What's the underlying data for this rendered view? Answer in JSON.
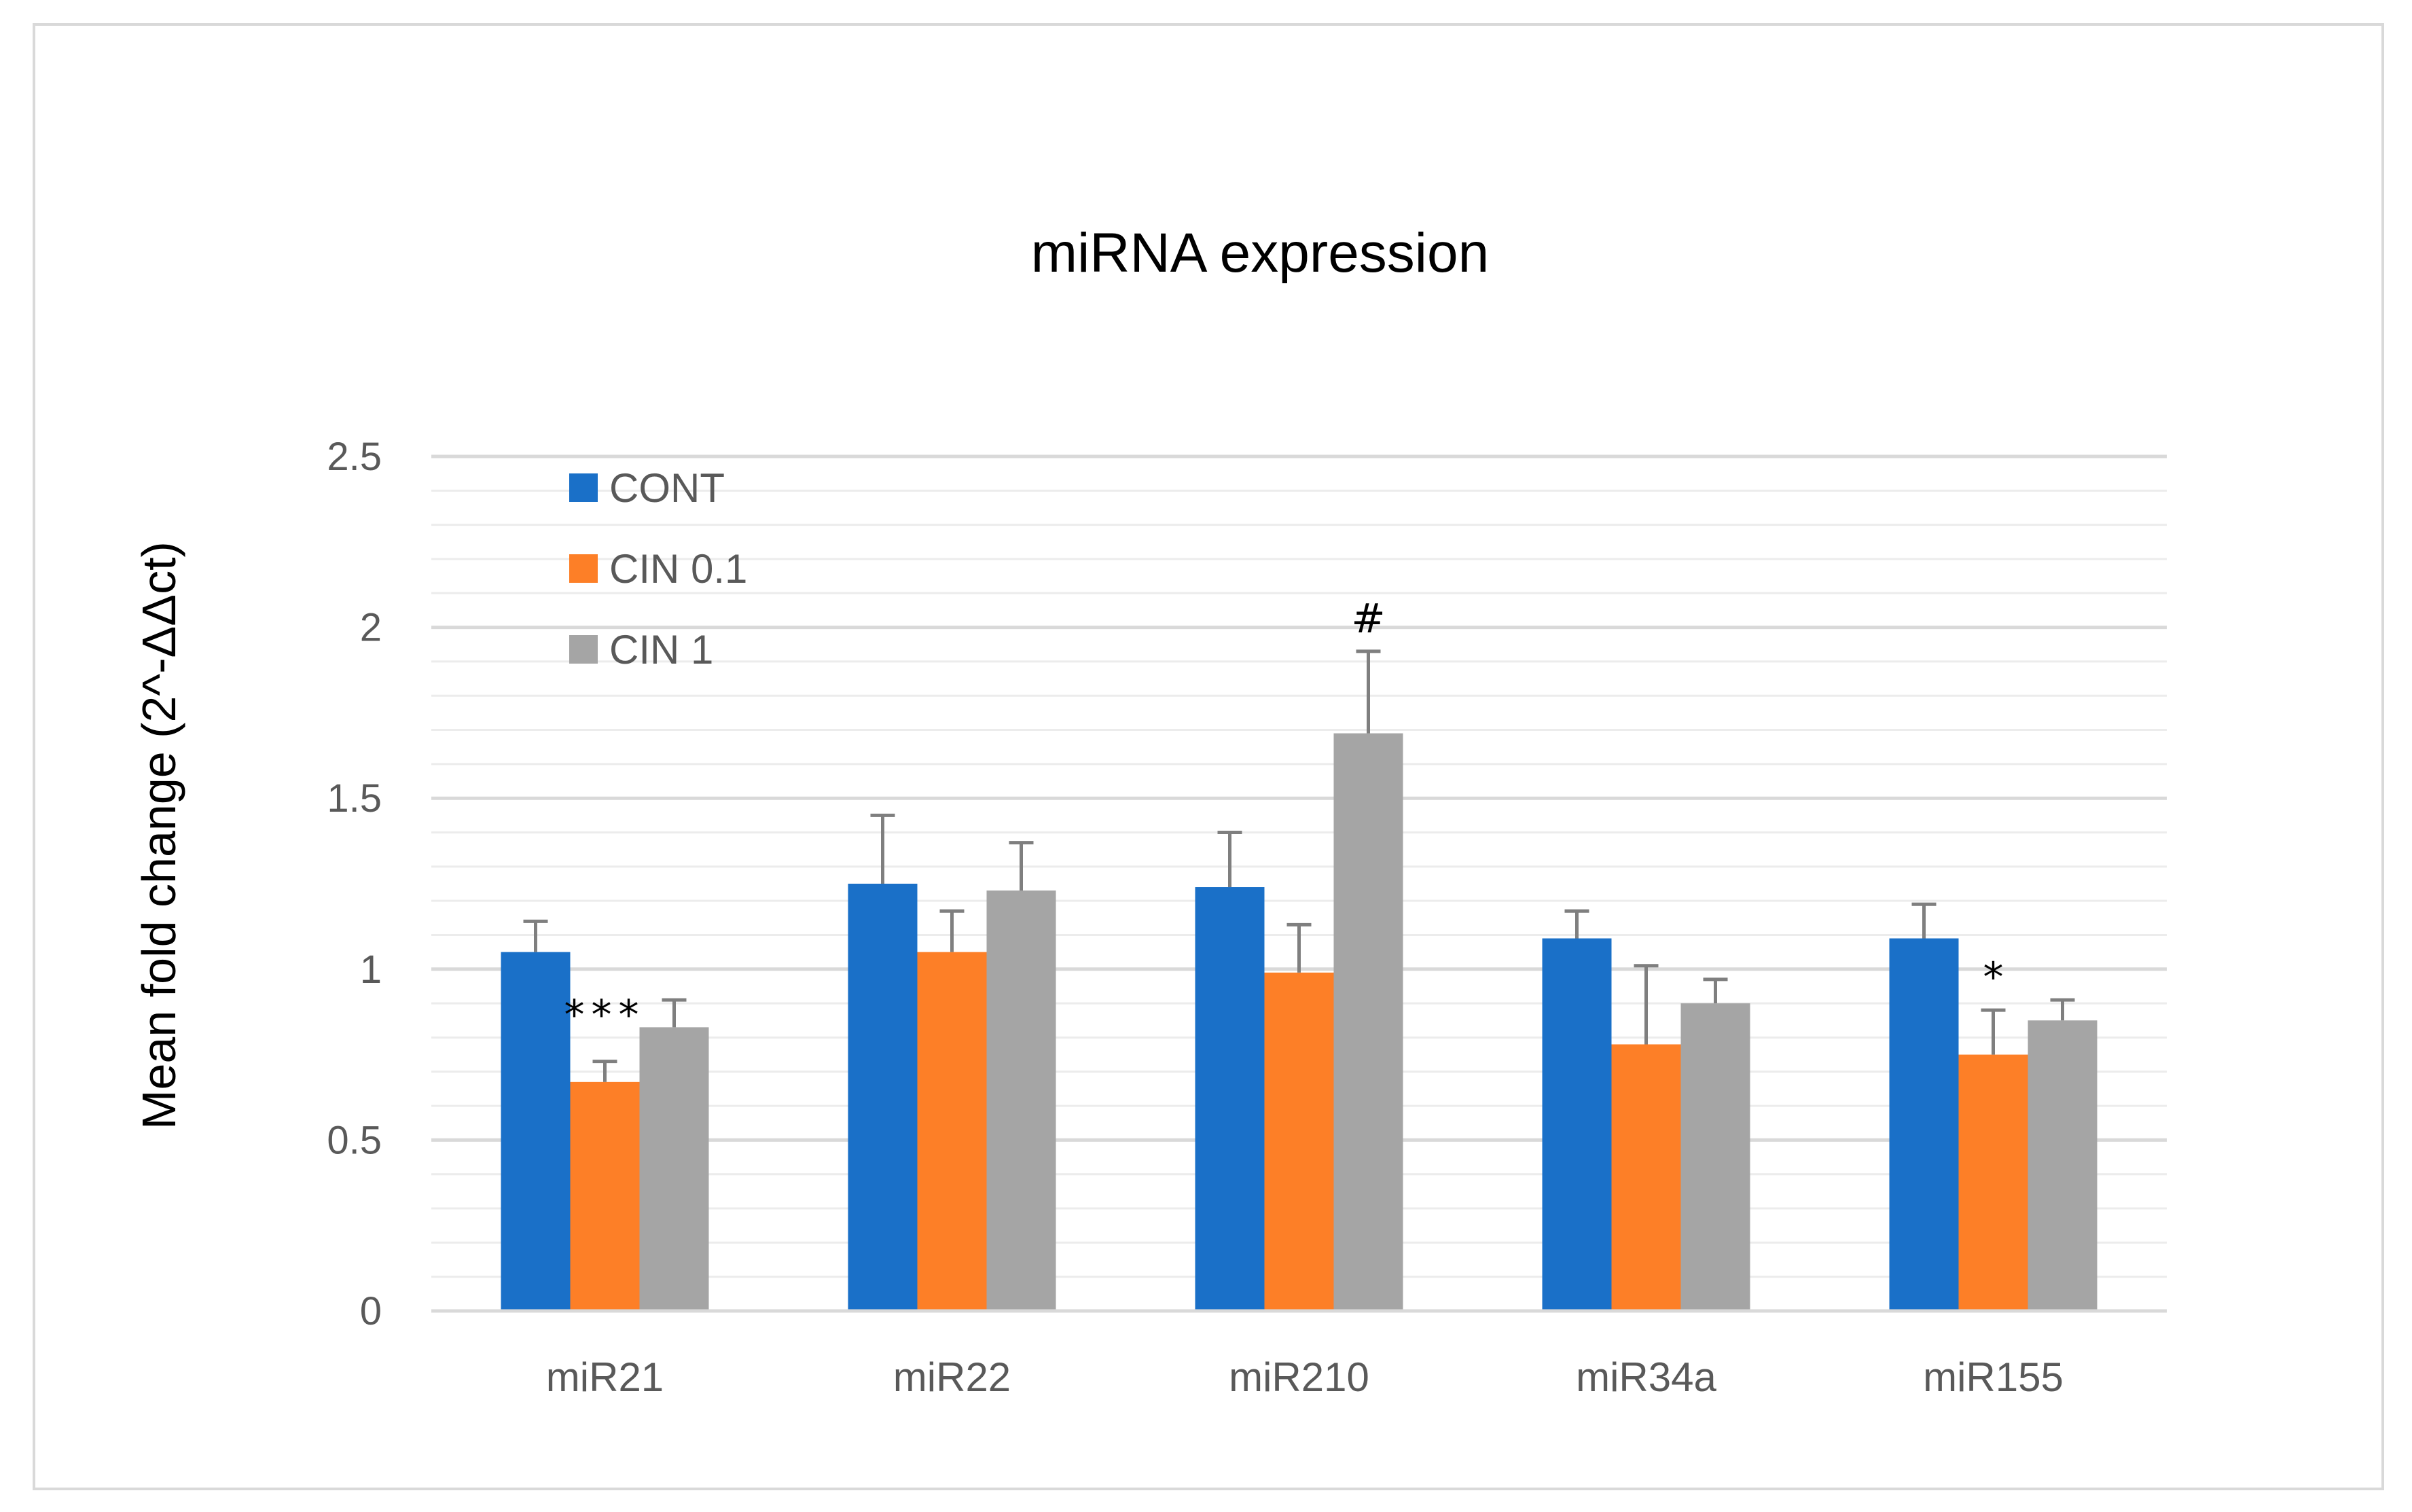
{
  "chart_data": {
    "type": "bar",
    "title": "miRNA expression",
    "xlabel": "",
    "ylabel": "Mean fold change (2^-ΔΔct)",
    "categories": [
      "miR21",
      "miR22",
      "miR210",
      "miR34a",
      "miR155"
    ],
    "series": [
      {
        "name": "CONT",
        "color": "#1a70c8",
        "values": [
          1.05,
          1.25,
          1.24,
          1.09,
          1.09
        ],
        "errors": [
          0.09,
          0.2,
          0.16,
          0.08,
          0.1
        ]
      },
      {
        "name": "CIN 0.1",
        "color": "#fd7f27",
        "values": [
          0.67,
          1.05,
          0.99,
          0.78,
          0.75
        ],
        "errors": [
          0.06,
          0.12,
          0.14,
          0.23,
          0.13
        ]
      },
      {
        "name": "CIN 1",
        "color": "#a5a5a5",
        "values": [
          0.83,
          1.23,
          1.69,
          0.9,
          0.85
        ],
        "errors": [
          0.08,
          0.14,
          0.24,
          0.07,
          0.06
        ]
      }
    ],
    "ylim": [
      0,
      2.5
    ],
    "yticks": [
      0,
      0.5,
      1,
      1.5,
      2,
      2.5
    ],
    "ytick_labels": [
      "0",
      "0.5",
      "1",
      "1.5",
      "2",
      "2.5"
    ],
    "minor_grid_step": 0.1,
    "grid": true,
    "legend_position": "top-left",
    "annotations": [
      {
        "text": "***",
        "category": "miR21",
        "series": "CIN 0.1"
      },
      {
        "text": "#",
        "category": "miR210",
        "series": "CIN 1"
      },
      {
        "text": "*",
        "category": "miR155",
        "series": "CIN 0.1"
      }
    ]
  }
}
